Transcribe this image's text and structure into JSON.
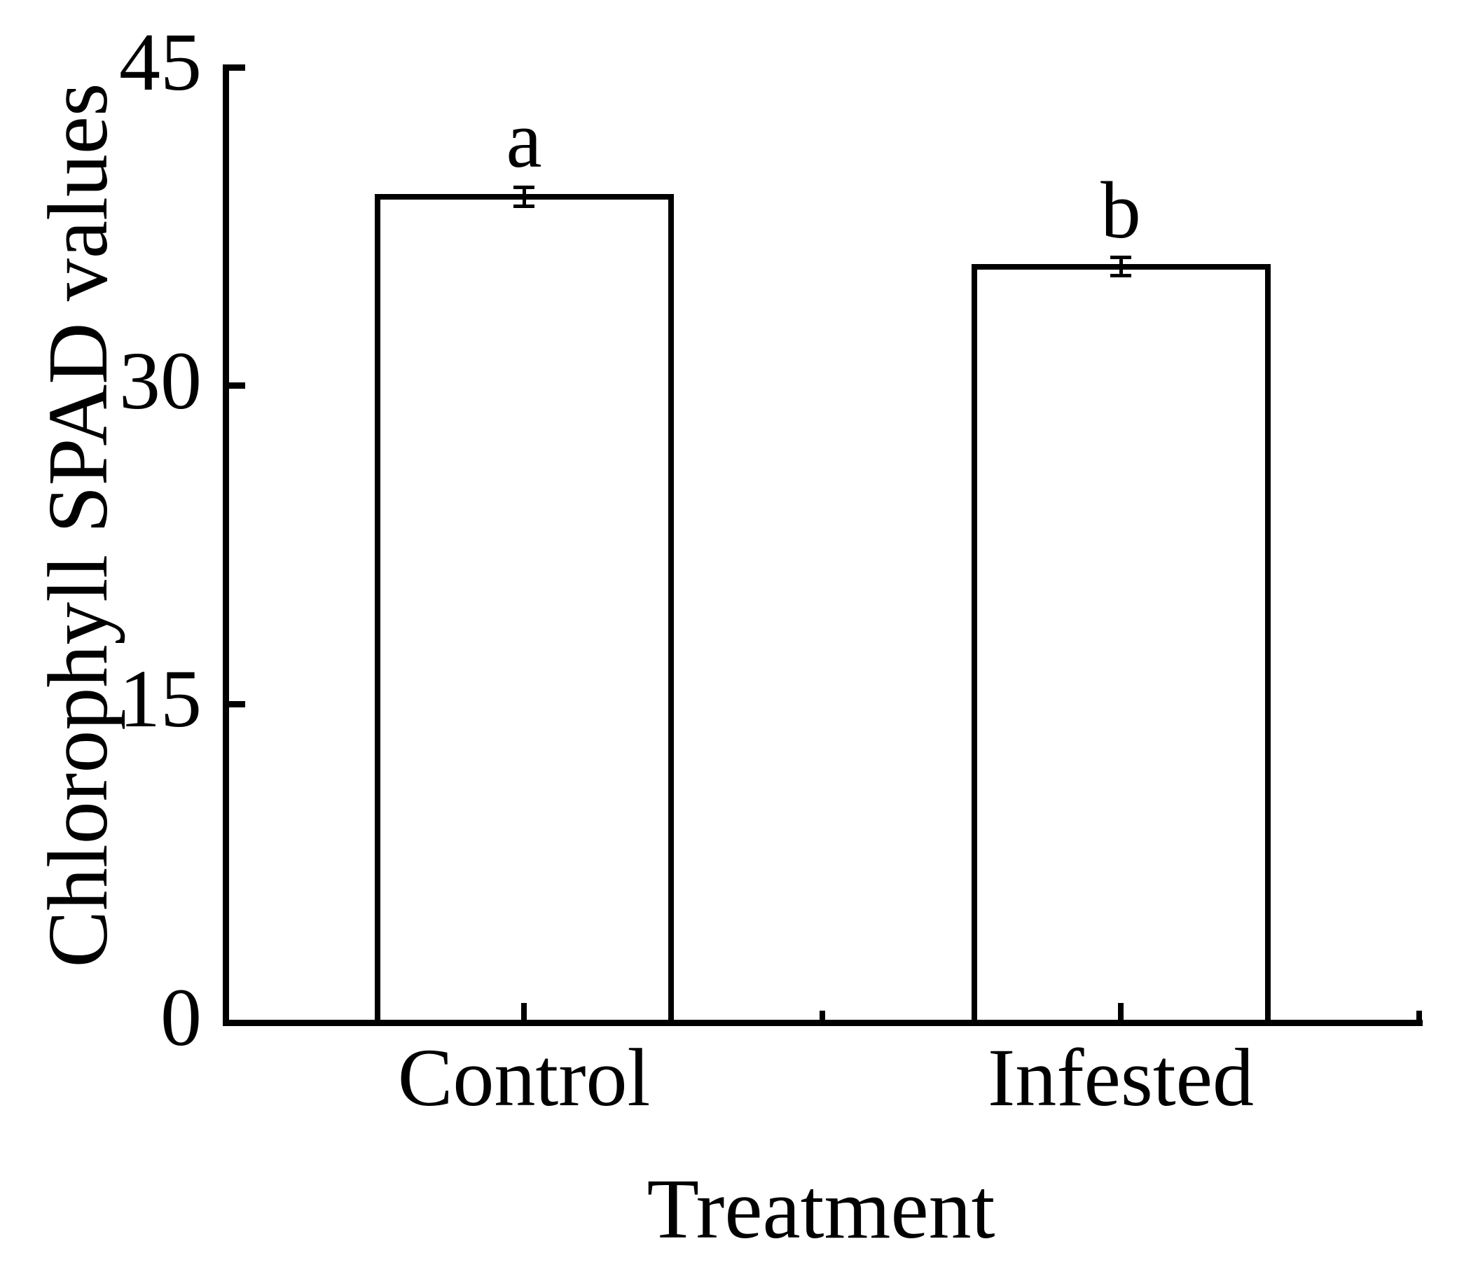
{
  "figure": {
    "background": "#ffffff",
    "ink_color": "#000000"
  },
  "chart_data": {
    "type": "bar",
    "title": "",
    "xlabel": "Treatment",
    "ylabel": "Chlorophyll SPAD values",
    "categories": [
      "Control",
      "Infested"
    ],
    "values": [
      38.9,
      35.6
    ],
    "errors": [
      0.45,
      0.43
    ],
    "significance_letters": [
      "a",
      "b"
    ],
    "ylim": [
      0,
      45
    ],
    "yticks": [
      0,
      15,
      30,
      45
    ],
    "grid": false,
    "legend": "none",
    "bar_fill": "#ffffff",
    "bar_outline_color": "#000000",
    "error_bar_style": "caps",
    "tick_direction": "in"
  }
}
